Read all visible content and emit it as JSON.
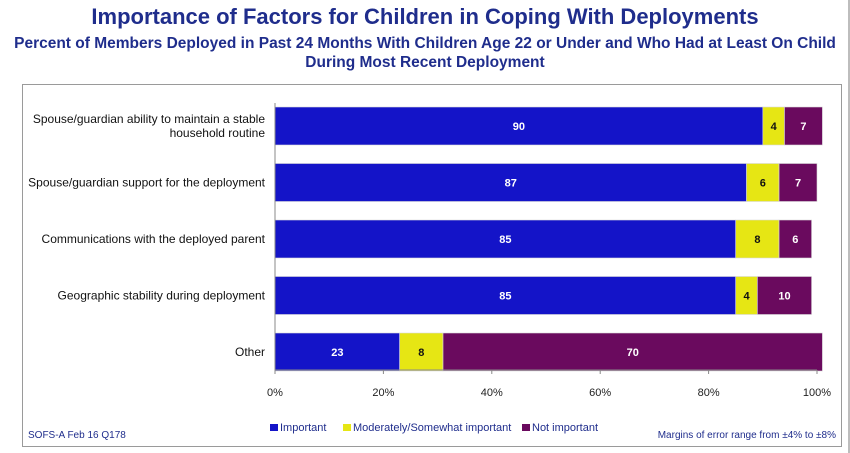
{
  "title": "Importance of Factors for Children in Coping With Deployments",
  "subtitle": "Percent of Members Deployed in Past 24 Months With Children Age 22 or Under and Who Had at Least On Child During Most Recent Deployment",
  "footer": {
    "source": "SOFS-A Feb 16 Q178",
    "margin_note": "Margins of error range from ±4% to ±8%"
  },
  "colors": {
    "important": "#1414c8",
    "moderately": "#e6e614",
    "not_important": "#6a0a5e"
  },
  "chart_data": {
    "type": "bar",
    "orientation": "horizontal",
    "stacked": true,
    "categories": [
      [
        "Spouse/guardian ability to maintain a stable",
        "household routine"
      ],
      [
        "Spouse/guardian support for the deployment"
      ],
      [
        "Communications with the deployed parent"
      ],
      [
        "Geographic stability during deployment"
      ],
      [
        "Other"
      ]
    ],
    "series": [
      {
        "name": "Important",
        "values": [
          90,
          87,
          85,
          85,
          23
        ]
      },
      {
        "name": "Moderately/Somewhat important",
        "values": [
          4,
          6,
          8,
          4,
          8
        ]
      },
      {
        "name": "Not important",
        "values": [
          7,
          7,
          6,
          10,
          70
        ]
      }
    ],
    "xlim": [
      0,
      100
    ],
    "x_ticks": [
      "0%",
      "20%",
      "40%",
      "60%",
      "80%",
      "100%"
    ],
    "legend_position": "bottom",
    "grid": false
  }
}
